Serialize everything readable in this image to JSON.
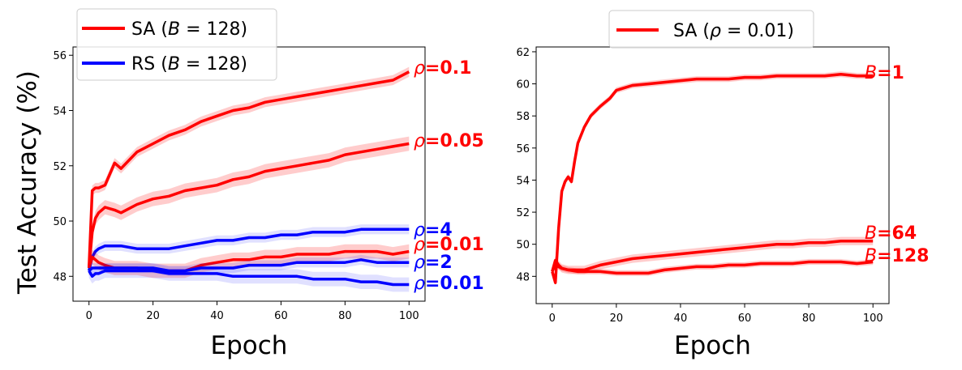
{
  "chart_data": [
    {
      "type": "line",
      "xlabel": "Epoch",
      "ylabel": "Test Accuracy (%)",
      "xlim": [
        -5,
        105
      ],
      "ylim": [
        47.1,
        56.3
      ],
      "xticks": [
        0,
        20,
        40,
        60,
        80,
        100
      ],
      "yticks": [
        48,
        50,
        52,
        54,
        56
      ],
      "legend_position": "top-left, above the axes",
      "legend": [
        {
          "series": "SA",
          "parts": [
            "SA (",
            "B",
            " = 128)"
          ],
          "color": "#ff0000"
        },
        {
          "series": "RS",
          "parts": [
            "RS (",
            "B",
            " = 128)"
          ],
          "color": "#0000ff"
        }
      ],
      "series": [
        {
          "method": "SA",
          "sym": "ρ",
          "val": "=0.1",
          "color": "#ff0000",
          "x": [
            0,
            1,
            2,
            3,
            5,
            8,
            10,
            15,
            20,
            25,
            30,
            35,
            40,
            45,
            50,
            55,
            60,
            65,
            70,
            75,
            80,
            85,
            90,
            95,
            100
          ],
          "y": [
            48.3,
            51.1,
            51.2,
            51.2,
            51.3,
            52.1,
            51.9,
            52.5,
            52.8,
            53.1,
            53.3,
            53.6,
            53.8,
            54.0,
            54.1,
            54.3,
            54.4,
            54.5,
            54.6,
            54.7,
            54.8,
            54.9,
            55.0,
            55.1,
            55.4
          ]
        },
        {
          "method": "SA",
          "sym": "ρ",
          "val": "=0.05",
          "color": "#ff0000",
          "x": [
            0,
            1,
            2,
            3,
            5,
            8,
            10,
            15,
            20,
            25,
            30,
            35,
            40,
            45,
            50,
            55,
            60,
            65,
            70,
            75,
            80,
            85,
            90,
            95,
            100
          ],
          "y": [
            48.3,
            49.6,
            50.1,
            50.3,
            50.5,
            50.4,
            50.3,
            50.6,
            50.8,
            50.9,
            51.1,
            51.2,
            51.3,
            51.5,
            51.6,
            51.8,
            51.9,
            52.0,
            52.1,
            52.2,
            52.4,
            52.5,
            52.6,
            52.7,
            52.8
          ]
        },
        {
          "method": "RS",
          "sym": "ρ",
          "val": "=4",
          "color": "#0000ff",
          "x": [
            0,
            1,
            2,
            3,
            5,
            8,
            10,
            15,
            20,
            25,
            30,
            35,
            40,
            45,
            50,
            55,
            60,
            65,
            70,
            75,
            80,
            85,
            90,
            95,
            100
          ],
          "y": [
            48.2,
            48.7,
            48.9,
            49.0,
            49.1,
            49.1,
            49.1,
            49.0,
            49.0,
            49.0,
            49.1,
            49.2,
            49.3,
            49.3,
            49.4,
            49.4,
            49.5,
            49.5,
            49.6,
            49.6,
            49.6,
            49.7,
            49.7,
            49.7,
            49.7
          ]
        },
        {
          "method": "SA",
          "sym": "ρ",
          "val": "=0.01",
          "color": "#ff0000",
          "x": [
            0,
            1,
            2,
            3,
            5,
            8,
            10,
            15,
            20,
            25,
            30,
            35,
            40,
            45,
            50,
            55,
            60,
            65,
            70,
            75,
            80,
            85,
            90,
            95,
            100
          ],
          "y": [
            48.3,
            48.7,
            48.6,
            48.5,
            48.4,
            48.3,
            48.3,
            48.3,
            48.2,
            48.2,
            48.2,
            48.4,
            48.5,
            48.6,
            48.6,
            48.7,
            48.7,
            48.8,
            48.8,
            48.8,
            48.9,
            48.9,
            48.9,
            48.8,
            48.9
          ]
        },
        {
          "method": "RS",
          "sym": "ρ",
          "val": "=2",
          "color": "#0000ff",
          "x": [
            0,
            1,
            2,
            3,
            5,
            8,
            10,
            15,
            20,
            25,
            30,
            35,
            40,
            45,
            50,
            55,
            60,
            65,
            70,
            75,
            80,
            85,
            90,
            95,
            100
          ],
          "y": [
            48.2,
            48.3,
            48.3,
            48.3,
            48.3,
            48.3,
            48.3,
            48.3,
            48.3,
            48.2,
            48.2,
            48.3,
            48.3,
            48.3,
            48.4,
            48.4,
            48.4,
            48.5,
            48.5,
            48.5,
            48.5,
            48.6,
            48.5,
            48.5,
            48.5
          ]
        },
        {
          "method": "RS",
          "sym": "ρ",
          "val": "=0.01",
          "color": "#0000ff",
          "x": [
            0,
            1,
            2,
            3,
            5,
            8,
            10,
            15,
            20,
            25,
            30,
            35,
            40,
            45,
            50,
            55,
            60,
            65,
            70,
            75,
            80,
            85,
            90,
            95,
            100
          ],
          "y": [
            48.2,
            48.0,
            48.1,
            48.1,
            48.2,
            48.2,
            48.2,
            48.2,
            48.2,
            48.1,
            48.1,
            48.1,
            48.1,
            48.0,
            48.0,
            48.0,
            48.0,
            48.0,
            47.9,
            47.9,
            47.9,
            47.8,
            47.8,
            47.7,
            47.7
          ]
        }
      ]
    },
    {
      "type": "line",
      "xlabel": "Epoch",
      "ylabel": "",
      "xlim": [
        -5,
        105
      ],
      "ylim": [
        46.3,
        62.3
      ],
      "xticks": [
        0,
        20,
        40,
        60,
        80,
        100
      ],
      "yticks": [
        48,
        50,
        52,
        54,
        56,
        58,
        60,
        62
      ],
      "legend_position": "top-center, above the axes",
      "legend": [
        {
          "series": "SA",
          "parts": [
            "SA (",
            "ρ",
            " = 0.01)"
          ],
          "color": "#ff0000"
        }
      ],
      "series": [
        {
          "method": "SA",
          "sym": "B",
          "val": "=1",
          "color": "#ff0000",
          "x": [
            0,
            1,
            2,
            3,
            4,
            5,
            6,
            7,
            8,
            10,
            12,
            15,
            18,
            20,
            25,
            30,
            35,
            40,
            45,
            50,
            55,
            60,
            65,
            70,
            75,
            80,
            85,
            90,
            95,
            100
          ],
          "y": [
            48.3,
            47.6,
            51.0,
            53.3,
            53.9,
            54.2,
            53.9,
            55.2,
            56.3,
            57.3,
            58.0,
            58.6,
            59.1,
            59.6,
            59.9,
            60.0,
            60.1,
            60.2,
            60.3,
            60.3,
            60.3,
            60.4,
            60.4,
            60.5,
            60.5,
            60.5,
            60.5,
            60.6,
            60.5,
            60.5
          ]
        },
        {
          "method": "SA",
          "sym": "B",
          "val": "=64",
          "color": "#ff0000",
          "x": [
            0,
            1,
            2,
            3,
            5,
            8,
            10,
            15,
            20,
            25,
            30,
            35,
            40,
            45,
            50,
            55,
            60,
            65,
            70,
            75,
            80,
            85,
            90,
            95,
            100
          ],
          "y": [
            48.3,
            49.0,
            48.7,
            48.5,
            48.4,
            48.4,
            48.4,
            48.7,
            48.9,
            49.1,
            49.2,
            49.3,
            49.4,
            49.5,
            49.6,
            49.7,
            49.8,
            49.9,
            50.0,
            50.0,
            50.1,
            50.1,
            50.2,
            50.2,
            50.2
          ]
        },
        {
          "method": "SA",
          "sym": "B",
          "val": "=128",
          "color": "#ff0000",
          "x": [
            0,
            1,
            2,
            3,
            5,
            8,
            10,
            15,
            20,
            25,
            30,
            35,
            40,
            45,
            50,
            55,
            60,
            65,
            70,
            75,
            80,
            85,
            90,
            95,
            100
          ],
          "y": [
            48.3,
            48.7,
            48.6,
            48.5,
            48.4,
            48.3,
            48.3,
            48.3,
            48.2,
            48.2,
            48.2,
            48.4,
            48.5,
            48.6,
            48.6,
            48.7,
            48.7,
            48.8,
            48.8,
            48.8,
            48.9,
            48.9,
            48.9,
            48.8,
            48.9
          ]
        }
      ]
    }
  ]
}
